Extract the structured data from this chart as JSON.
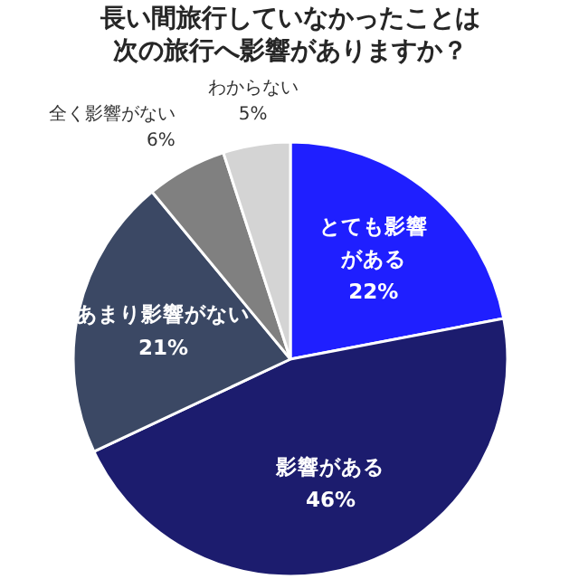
{
  "chart_data": {
    "type": "pie",
    "title": "長い間旅行していなかったことは次の旅行へ影響がありますか？",
    "categories": [
      "とても影響がある",
      "影響がある",
      "あまり影響がない",
      "全く影響がない",
      "わからない"
    ],
    "values": [
      22,
      46,
      21,
      6,
      5
    ],
    "value_labels": [
      "22%",
      "46%",
      "21%",
      "6%",
      "5%"
    ],
    "colors": [
      "#1f1fff",
      "#1c1c6e",
      "#3b4864",
      "#808080",
      "#d4d4d4"
    ]
  }
}
